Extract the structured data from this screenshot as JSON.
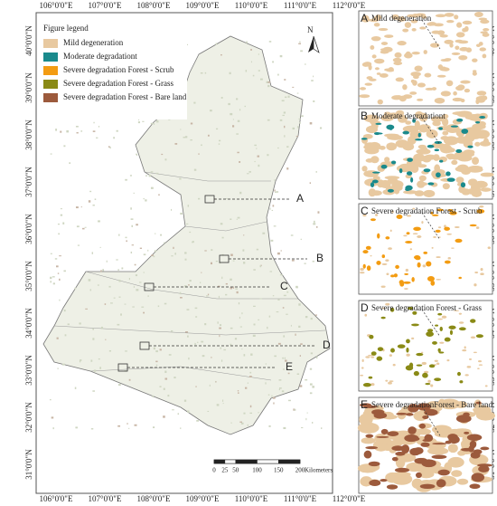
{
  "map": {
    "longitude_labels": [
      "106°0'0\"E",
      "107°0'0\"E",
      "108°0'0\"E",
      "109°0'0\"E",
      "110°0'0\"E",
      "111°0'0\"E",
      "112°0'0\"E"
    ],
    "latitude_labels": [
      "40°0'0\"N",
      "39°0'0\"N",
      "38°0'0\"N",
      "37°0'0\"N",
      "36°0'0\"N",
      "35°0'0\"N",
      "34°0'0\"N",
      "33°0'0\"N",
      "32°0'0\"N",
      "31°0'0\"N"
    ],
    "north_label": "N",
    "legend": {
      "title": "Figure legend",
      "items": [
        {
          "label": "Mild degeneration",
          "color": "#e8c9a0"
        },
        {
          "label": "Moderate degradationt",
          "color": "#1a8a8c"
        },
        {
          "label": "Severe degradation  Forest - Scrub",
          "color": "#f39c12"
        },
        {
          "label": "Severe degradation  Forest - Grass",
          "color": "#8a8a16"
        },
        {
          "label": "Severe degradation  Forest - Bare land",
          "color": "#9c5a3c"
        }
      ]
    },
    "callouts": [
      "A",
      "B",
      "C",
      "D",
      "E"
    ],
    "scale_bar": {
      "ticks": [
        0,
        25,
        50,
        100,
        150,
        200
      ],
      "unit": "Kilometers"
    }
  },
  "panels": [
    {
      "letter": "A",
      "caption": "Mild degeneration"
    },
    {
      "letter": "B",
      "caption": "Moderate degradationt"
    },
    {
      "letter": "C",
      "caption": "Severe degradation Forest - Scrub"
    },
    {
      "letter": "D",
      "caption": "Severe degradation Forest - Grass"
    },
    {
      "letter": "E",
      "caption": "Severe degradationForest - Bare land"
    }
  ]
}
